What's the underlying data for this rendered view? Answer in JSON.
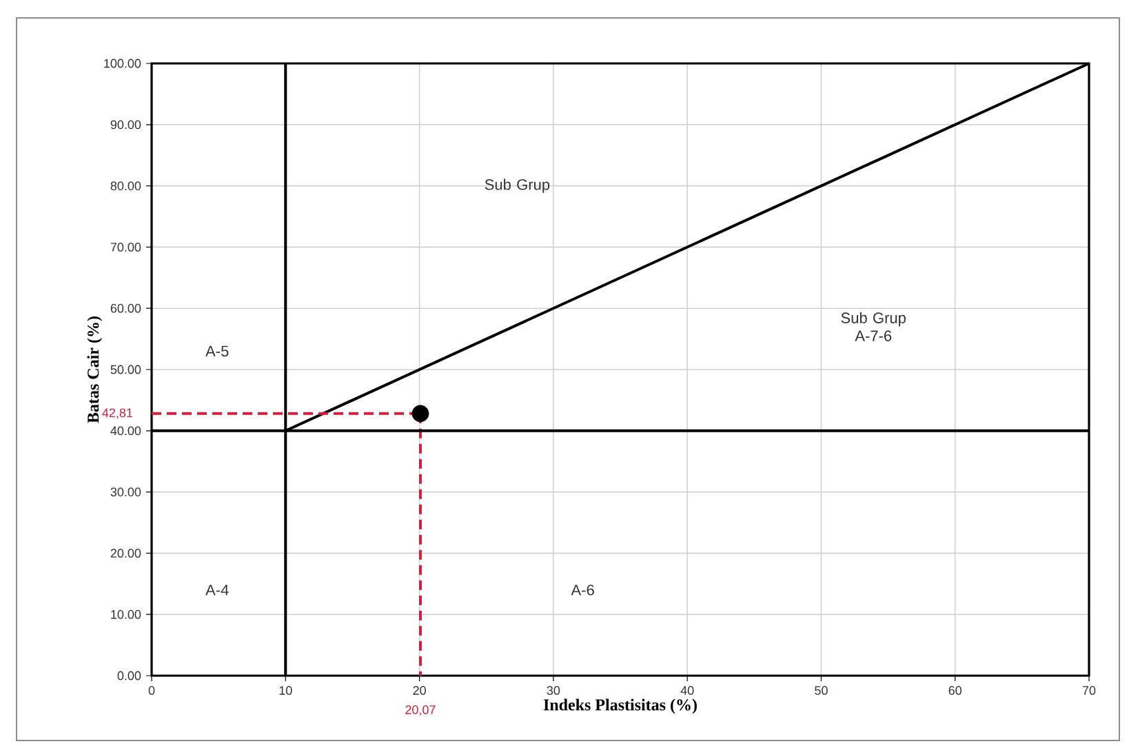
{
  "chart_data": {
    "type": "line",
    "xlabel": "Indeks Plastisitas (%)",
    "ylabel": "Batas Cair (%)",
    "xlim": [
      0,
      70
    ],
    "ylim": [
      0,
      100
    ],
    "xticks": [
      0,
      10,
      20,
      30,
      40,
      50,
      60,
      70
    ],
    "yticks": [
      {
        "value": 0,
        "label": "0.00"
      },
      {
        "value": 10,
        "label": "10.00"
      },
      {
        "value": 20,
        "label": "20.00"
      },
      {
        "value": 30,
        "label": "30.00"
      },
      {
        "value": 40,
        "label": "40.00"
      },
      {
        "value": 50,
        "label": "50.00"
      },
      {
        "value": 60,
        "label": "60.00"
      },
      {
        "value": 70,
        "label": "70.00"
      },
      {
        "value": 80,
        "label": "80.00"
      },
      {
        "value": 90,
        "label": "90.00"
      },
      {
        "value": 100,
        "label": "100.00"
      }
    ],
    "grid": true,
    "series": [
      {
        "color": "#000000",
        "x": [
          10,
          70
        ],
        "values": [
          40,
          100
        ],
        "marker": "none",
        "line_style": "solid"
      },
      {
        "color": "#d0203a",
        "x": [
          0,
          20.07
        ],
        "values": [
          42.81,
          42.81
        ],
        "marker": "none",
        "line_style": "dashed"
      },
      {
        "color": "#d0203a",
        "x": [
          20.07,
          20.07
        ],
        "values": [
          42.81,
          0
        ],
        "marker": "none",
        "line_style": "dashed"
      },
      {
        "type": "scatter",
        "color": "#000000",
        "x": [
          20.07
        ],
        "values": [
          42.81
        ],
        "marker": "circle"
      }
    ],
    "ref_lines": [
      {
        "axis": "x",
        "value": 10,
        "color": "#000000",
        "line_style": "solid"
      },
      {
        "axis": "y",
        "value": 40,
        "color": "#000000",
        "line_style": "solid"
      }
    ],
    "annotations": [
      "42,81",
      "20,07",
      "Sub Grup",
      "Sub Grup A-7-6",
      "A-5",
      "A-4",
      "A-6"
    ]
  }
}
